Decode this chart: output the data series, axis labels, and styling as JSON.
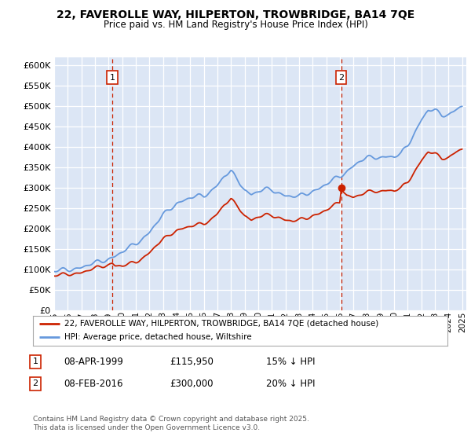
{
  "title_line1": "22, FAVEROLLE WAY, HILPERTON, TROWBRIDGE, BA14 7QE",
  "title_line2": "Price paid vs. HM Land Registry's House Price Index (HPI)",
  "legend_label_red": "22, FAVEROLLE WAY, HILPERTON, TROWBRIDGE, BA14 7QE (detached house)",
  "legend_label_blue": "HPI: Average price, detached house, Wiltshire",
  "annotation1": {
    "num": "1",
    "date": "08-APR-1999",
    "price": "£115,950",
    "note": "15% ↓ HPI"
  },
  "annotation2": {
    "num": "2",
    "date": "08-FEB-2016",
    "price": "£300,000",
    "note": "20% ↓ HPI"
  },
  "footnote": "Contains HM Land Registry data © Crown copyright and database right 2025.\nThis data is licensed under the Open Government Licence v3.0.",
  "ylim": [
    0,
    620000
  ],
  "yticks": [
    0,
    50000,
    100000,
    150000,
    200000,
    250000,
    300000,
    350000,
    400000,
    450000,
    500000,
    550000,
    600000
  ],
  "background_color": "#dce6f5",
  "red_color": "#cc2200",
  "blue_color": "#6699dd",
  "vline_color": "#cc2200",
  "marker1_x": 1999.27,
  "marker2_x": 2016.1,
  "hpi_years": [
    1995.0,
    1995.5,
    1996.0,
    1996.5,
    1997.0,
    1997.5,
    1998.0,
    1998.5,
    1999.0,
    1999.5,
    2000.0,
    2000.5,
    2001.0,
    2001.5,
    2002.0,
    2002.5,
    2003.0,
    2003.5,
    2004.0,
    2004.5,
    2005.0,
    2005.5,
    2006.0,
    2006.5,
    2007.0,
    2007.5,
    2008.0,
    2008.5,
    2009.0,
    2009.5,
    2010.0,
    2010.5,
    2011.0,
    2011.5,
    2012.0,
    2012.5,
    2013.0,
    2013.5,
    2014.0,
    2014.5,
    2015.0,
    2015.5,
    2016.0,
    2016.5,
    2017.0,
    2017.5,
    2018.0,
    2018.5,
    2019.0,
    2019.5,
    2020.0,
    2020.5,
    2021.0,
    2021.5,
    2022.0,
    2022.5,
    2023.0,
    2023.5,
    2024.0,
    2024.5,
    2025.0
  ],
  "hpi_vals": [
    95000,
    97000,
    99000,
    102000,
    106000,
    110000,
    115000,
    120000,
    126000,
    134000,
    142000,
    152000,
    163000,
    176000,
    192000,
    212000,
    232000,
    248000,
    262000,
    270000,
    275000,
    278000,
    280000,
    292000,
    308000,
    328000,
    338000,
    320000,
    295000,
    285000,
    290000,
    295000,
    295000,
    288000,
    282000,
    278000,
    278000,
    285000,
    292000,
    300000,
    308000,
    318000,
    328000,
    340000,
    355000,
    365000,
    372000,
    375000,
    375000,
    378000,
    375000,
    382000,
    405000,
    435000,
    468000,
    490000,
    488000,
    478000,
    480000,
    492000,
    500000
  ],
  "red_years": [
    1995.0,
    1995.5,
    1996.0,
    1996.5,
    1997.0,
    1997.5,
    1998.0,
    1998.5,
    1999.0,
    1999.27,
    1999.5,
    2000.0,
    2000.5,
    2001.0,
    2001.5,
    2002.0,
    2002.5,
    2003.0,
    2003.5,
    2004.0,
    2004.5,
    2005.0,
    2005.5,
    2006.0,
    2006.5,
    2007.0,
    2007.5,
    2008.0,
    2008.5,
    2009.0,
    2009.5,
    2010.0,
    2010.5,
    2011.0,
    2011.5,
    2012.0,
    2012.5,
    2013.0,
    2013.5,
    2014.0,
    2014.5,
    2015.0,
    2015.5,
    2016.0,
    2016.1,
    2016.5,
    2017.0,
    2017.5,
    2018.0,
    2018.5,
    2019.0,
    2019.5,
    2020.0,
    2020.5,
    2021.0,
    2021.5,
    2022.0,
    2022.5,
    2023.0,
    2023.5,
    2024.0,
    2024.5,
    2025.0
  ],
  "red_vals": [
    84000,
    86000,
    88000,
    90000,
    93000,
    97000,
    102000,
    107000,
    112000,
    115950,
    110000,
    108000,
    112000,
    118000,
    128000,
    142000,
    158000,
    172000,
    185000,
    196000,
    202000,
    205000,
    208000,
    212000,
    222000,
    238000,
    258000,
    270000,
    255000,
    232000,
    222000,
    228000,
    232000,
    232000,
    228000,
    222000,
    218000,
    220000,
    225000,
    232000,
    238000,
    245000,
    254000,
    265000,
    300000,
    282000,
    278000,
    282000,
    288000,
    292000,
    292000,
    295000,
    292000,
    298000,
    315000,
    340000,
    368000,
    388000,
    382000,
    372000,
    375000,
    388000,
    395000
  ]
}
